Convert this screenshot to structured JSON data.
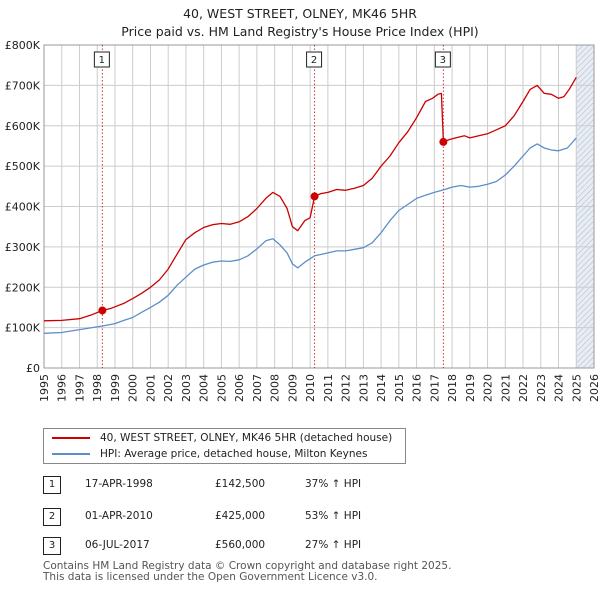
{
  "title_line1": "40, WEST STREET, OLNEY, MK46 5HR",
  "title_line2": "Price paid vs. HM Land Registry's House Price Index (HPI)",
  "legend": {
    "property_label": "40, WEST STREET, OLNEY, MK46 5HR (detached house)",
    "hpi_label": "HPI: Average price, detached house, Milton Keynes"
  },
  "colors": {
    "property": "#cc0000",
    "hpi": "#5b8fc9",
    "grid": "#cccccc",
    "shade": "#dce6f2"
  },
  "transactions": [
    {
      "num": "1",
      "date": "17-APR-1998",
      "price": "£142,500",
      "hpi_change": "37% ↑ HPI"
    },
    {
      "num": "2",
      "date": "01-APR-2010",
      "price": "£425,000",
      "hpi_change": "53% ↑ HPI"
    },
    {
      "num": "3",
      "date": "06-JUL-2017",
      "price": "£560,000",
      "hpi_change": "27% ↑ HPI"
    }
  ],
  "footer": {
    "line1": "Contains HM Land Registry data © Crown copyright and database right 2025.",
    "line2": "This data is licensed under the Open Government Licence v3.0."
  },
  "chart_data": {
    "type": "line",
    "title": "Price paid vs. HM Land Registry's House Price Index (HPI)",
    "xlim": [
      1995,
      2026
    ],
    "ylim": [
      0,
      800000
    ],
    "x_ticks": [
      "1995",
      "1996",
      "1997",
      "1998",
      "1999",
      "2000",
      "2001",
      "2002",
      "2003",
      "2004",
      "2005",
      "2006",
      "2007",
      "2008",
      "2009",
      "2010",
      "2011",
      "2012",
      "2013",
      "2014",
      "2015",
      "2016",
      "2017",
      "2018",
      "2019",
      "2020",
      "2021",
      "2022",
      "2023",
      "2024",
      "2025",
      "2026"
    ],
    "y_ticks": [
      {
        "value": 0,
        "label": "£0"
      },
      {
        "value": 100000,
        "label": "£100K"
      },
      {
        "value": 200000,
        "label": "£200K"
      },
      {
        "value": 300000,
        "label": "£300K"
      },
      {
        "value": 400000,
        "label": "£400K"
      },
      {
        "value": 500000,
        "label": "£500K"
      },
      {
        "value": 600000,
        "label": "£600K"
      },
      {
        "value": 700000,
        "label": "£700K"
      },
      {
        "value": 800000,
        "label": "£800K"
      }
    ],
    "forecast_start": 2025.0,
    "series": [
      {
        "name": "40, WEST STREET, OLNEY, MK46 5HR (detached house)",
        "x": [
          1995.0,
          1996.0,
          1997.0,
          1997.7,
          1998.29,
          1998.8,
          1999.5,
          2000.0,
          2000.5,
          2001.0,
          2001.5,
          2002.0,
          2002.5,
          2003.0,
          2003.5,
          2004.0,
          2004.5,
          2005.0,
          2005.5,
          2006.0,
          2006.5,
          2007.0,
          2007.5,
          2007.9,
          2008.3,
          2008.7,
          2009.0,
          2009.3,
          2009.7,
          2010.0,
          2010.25,
          2010.6,
          2011.0,
          2011.5,
          2012.0,
          2012.5,
          2013.0,
          2013.5,
          2014.0,
          2014.5,
          2015.0,
          2015.5,
          2016.0,
          2016.5,
          2016.9,
          2017.2,
          2017.4,
          2017.51,
          2017.8,
          2018.2,
          2018.7,
          2019.0,
          2019.5,
          2020.0,
          2020.5,
          2021.0,
          2021.5,
          2022.0,
          2022.4,
          2022.8,
          2023.2,
          2023.6,
          2024.0,
          2024.3,
          2024.6,
          2025.0
        ],
        "values": [
          117000,
          118000,
          122000,
          132000,
          142500,
          148000,
          160000,
          172000,
          185000,
          200000,
          218000,
          245000,
          282000,
          318000,
          335000,
          348000,
          355000,
          358000,
          356000,
          362000,
          375000,
          395000,
          420000,
          435000,
          425000,
          395000,
          350000,
          340000,
          365000,
          372000,
          425000,
          432000,
          435000,
          442000,
          440000,
          445000,
          452000,
          470000,
          500000,
          525000,
          558000,
          585000,
          620000,
          660000,
          668000,
          678000,
          680000,
          560000,
          565000,
          570000,
          575000,
          570000,
          575000,
          580000,
          590000,
          600000,
          625000,
          660000,
          690000,
          700000,
          680000,
          678000,
          668000,
          672000,
          690000,
          720000
        ]
      },
      {
        "name": "HPI: Average price, detached house, Milton Keynes",
        "x": [
          1995.0,
          1996.0,
          1997.0,
          1998.29,
          1999.0,
          1999.5,
          2000.0,
          2000.5,
          2001.0,
          2001.5,
          2002.0,
          2002.5,
          2003.0,
          2003.5,
          2004.0,
          2004.5,
          2005.0,
          2005.5,
          2006.0,
          2006.5,
          2007.0,
          2007.5,
          2007.9,
          2008.3,
          2008.7,
          2009.0,
          2009.3,
          2009.7,
          2010.25,
          2010.7,
          2011.0,
          2011.5,
          2012.0,
          2012.5,
          2013.0,
          2013.5,
          2014.0,
          2014.5,
          2015.0,
          2015.5,
          2016.0,
          2016.5,
          2017.0,
          2017.51,
          2018.0,
          2018.5,
          2019.0,
          2019.5,
          2020.0,
          2020.5,
          2021.0,
          2021.5,
          2022.0,
          2022.4,
          2022.8,
          2023.2,
          2023.6,
          2024.0,
          2024.5,
          2025.0
        ],
        "values": [
          86000,
          88000,
          95000,
          104000,
          110000,
          118000,
          125000,
          138000,
          150000,
          163000,
          180000,
          205000,
          225000,
          245000,
          255000,
          262000,
          265000,
          264000,
          268000,
          278000,
          295000,
          315000,
          320000,
          305000,
          285000,
          258000,
          248000,
          262000,
          278000,
          282000,
          285000,
          290000,
          290000,
          294000,
          298000,
          310000,
          335000,
          365000,
          390000,
          405000,
          420000,
          428000,
          435000,
          441000,
          448000,
          452000,
          448000,
          450000,
          455000,
          462000,
          478000,
          500000,
          525000,
          545000,
          555000,
          545000,
          540000,
          538000,
          545000,
          570000
        ]
      }
    ],
    "sales": [
      {
        "label": "1",
        "x": 1998.29,
        "value": 142500
      },
      {
        "label": "2",
        "x": 2010.25,
        "value": 425000
      },
      {
        "label": "3",
        "x": 2017.51,
        "value": 560000
      }
    ]
  }
}
